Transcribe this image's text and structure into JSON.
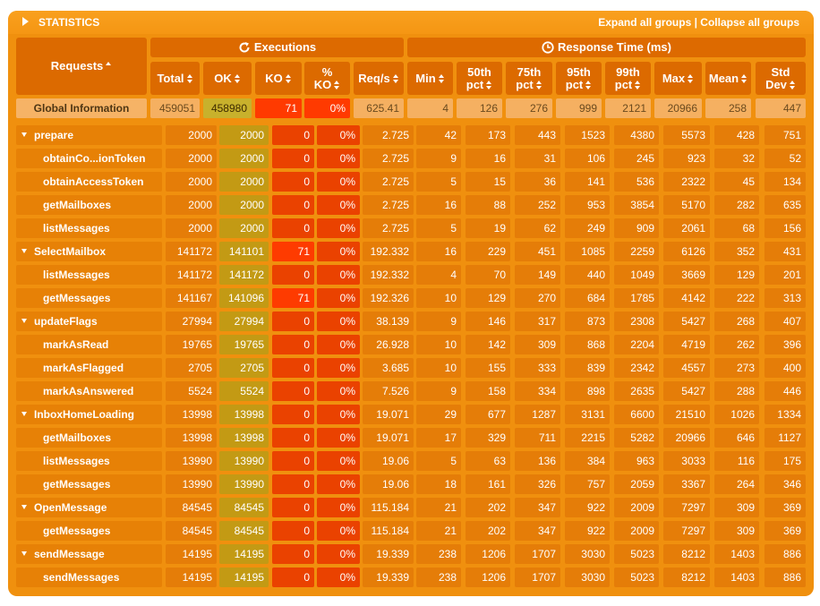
{
  "title": "STATISTICS",
  "expand_label": "Expand all groups",
  "separator": " | ",
  "collapse_label": "Collapse all groups",
  "headers": {
    "requests": "Requests",
    "executions": "Executions",
    "response_time": "Response Time (ms)",
    "cols": [
      [
        "Total"
      ],
      [
        "OK"
      ],
      [
        "KO"
      ],
      [
        "%",
        "KO"
      ],
      [
        "Req/s"
      ],
      [
        "Min"
      ],
      [
        "50th",
        "pct"
      ],
      [
        "75th",
        "pct"
      ],
      [
        "95th",
        "pct"
      ],
      [
        "99th",
        "pct"
      ],
      [
        "Max"
      ],
      [
        "Mean"
      ],
      [
        "Std",
        "Dev"
      ]
    ]
  },
  "global": {
    "name": "Global Information",
    "values": [
      "459051",
      "458980",
      "71",
      "0%",
      "625.41",
      "4",
      "126",
      "276",
      "999",
      "2121",
      "20966",
      "258",
      "447"
    ]
  },
  "rows": [
    {
      "name": "prepare",
      "group": true,
      "values": [
        "2000",
        "2000",
        "0",
        "0%",
        "2.725",
        "42",
        "173",
        "443",
        "1523",
        "4380",
        "5573",
        "428",
        "751"
      ]
    },
    {
      "name": "obtainCo...ionToken",
      "group": false,
      "values": [
        "2000",
        "2000",
        "0",
        "0%",
        "2.725",
        "9",
        "16",
        "31",
        "106",
        "245",
        "923",
        "32",
        "52"
      ]
    },
    {
      "name": "obtainAccessToken",
      "group": false,
      "values": [
        "2000",
        "2000",
        "0",
        "0%",
        "2.725",
        "5",
        "15",
        "36",
        "141",
        "536",
        "2322",
        "45",
        "134"
      ]
    },
    {
      "name": "getMailboxes",
      "group": false,
      "values": [
        "2000",
        "2000",
        "0",
        "0%",
        "2.725",
        "16",
        "88",
        "252",
        "953",
        "3854",
        "5170",
        "282",
        "635"
      ]
    },
    {
      "name": "listMessages",
      "group": false,
      "values": [
        "2000",
        "2000",
        "0",
        "0%",
        "2.725",
        "5",
        "19",
        "62",
        "249",
        "909",
        "2061",
        "68",
        "156"
      ]
    },
    {
      "name": "SelectMailbox",
      "group": true,
      "values": [
        "141172",
        "141101",
        "71",
        "0%",
        "192.332",
        "16",
        "229",
        "451",
        "1085",
        "2259",
        "6126",
        "352",
        "431"
      ]
    },
    {
      "name": "listMessages",
      "group": false,
      "values": [
        "141172",
        "141172",
        "0",
        "0%",
        "192.332",
        "4",
        "70",
        "149",
        "440",
        "1049",
        "3669",
        "129",
        "201"
      ]
    },
    {
      "name": "getMessages",
      "group": false,
      "values": [
        "141167",
        "141096",
        "71",
        "0%",
        "192.326",
        "10",
        "129",
        "270",
        "684",
        "1785",
        "4142",
        "222",
        "313"
      ]
    },
    {
      "name": "updateFlags",
      "group": true,
      "values": [
        "27994",
        "27994",
        "0",
        "0%",
        "38.139",
        "9",
        "146",
        "317",
        "873",
        "2308",
        "5427",
        "268",
        "407"
      ]
    },
    {
      "name": "markAsRead",
      "group": false,
      "values": [
        "19765",
        "19765",
        "0",
        "0%",
        "26.928",
        "10",
        "142",
        "309",
        "868",
        "2204",
        "4719",
        "262",
        "396"
      ]
    },
    {
      "name": "markAsFlagged",
      "group": false,
      "values": [
        "2705",
        "2705",
        "0",
        "0%",
        "3.685",
        "10",
        "155",
        "333",
        "839",
        "2342",
        "4557",
        "273",
        "400"
      ]
    },
    {
      "name": "markAsAnswered",
      "group": false,
      "values": [
        "5524",
        "5524",
        "0",
        "0%",
        "7.526",
        "9",
        "158",
        "334",
        "898",
        "2635",
        "5427",
        "288",
        "446"
      ]
    },
    {
      "name": "InboxHomeLoading",
      "group": true,
      "values": [
        "13998",
        "13998",
        "0",
        "0%",
        "19.071",
        "29",
        "677",
        "1287",
        "3131",
        "6600",
        "21510",
        "1026",
        "1334"
      ]
    },
    {
      "name": "getMailboxes",
      "group": false,
      "values": [
        "13998",
        "13998",
        "0",
        "0%",
        "19.071",
        "17",
        "329",
        "711",
        "2215",
        "5282",
        "20966",
        "646",
        "1127"
      ]
    },
    {
      "name": "listMessages",
      "group": false,
      "values": [
        "13990",
        "13990",
        "0",
        "0%",
        "19.06",
        "5",
        "63",
        "136",
        "384",
        "963",
        "3033",
        "116",
        "175"
      ]
    },
    {
      "name": "getMessages",
      "group": false,
      "values": [
        "13990",
        "13990",
        "0",
        "0%",
        "19.06",
        "18",
        "161",
        "326",
        "757",
        "2059",
        "3367",
        "264",
        "346"
      ]
    },
    {
      "name": "OpenMessage",
      "group": true,
      "values": [
        "84545",
        "84545",
        "0",
        "0%",
        "115.184",
        "21",
        "202",
        "347",
        "922",
        "2009",
        "7297",
        "309",
        "369"
      ]
    },
    {
      "name": "getMessages",
      "group": false,
      "values": [
        "84545",
        "84545",
        "0",
        "0%",
        "115.184",
        "21",
        "202",
        "347",
        "922",
        "2009",
        "7297",
        "309",
        "369"
      ]
    },
    {
      "name": "sendMessage",
      "group": true,
      "values": [
        "14195",
        "14195",
        "0",
        "0%",
        "19.339",
        "238",
        "1206",
        "1707",
        "3030",
        "5023",
        "8212",
        "1403",
        "886"
      ]
    },
    {
      "name": "sendMessages",
      "group": false,
      "values": [
        "14195",
        "14195",
        "0",
        "0%",
        "19.339",
        "238",
        "1206",
        "1707",
        "3030",
        "5023",
        "8212",
        "1403",
        "886"
      ]
    }
  ]
}
